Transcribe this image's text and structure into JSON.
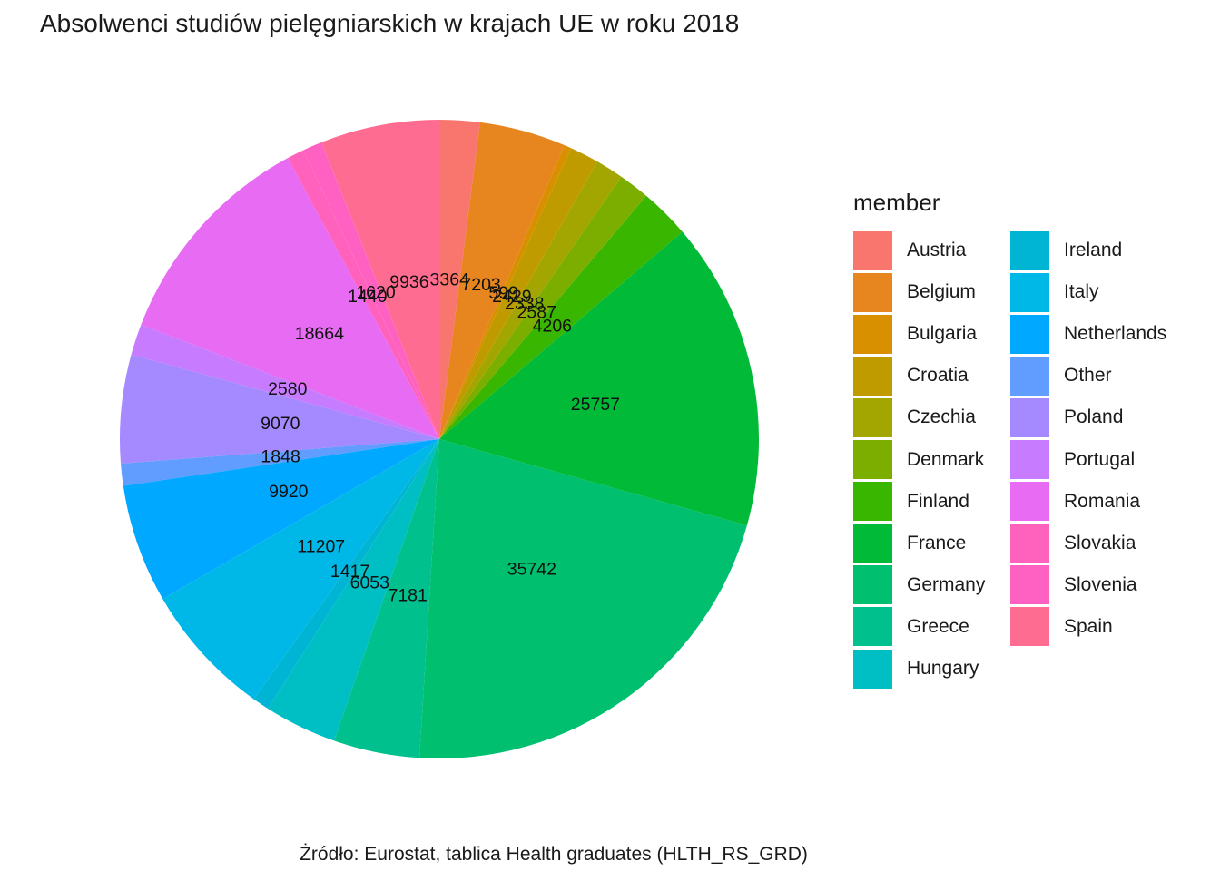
{
  "chart_data": {
    "type": "pie",
    "title": "Absolwenci studiów pielęgniarskich w krajach UE w roku 2018",
    "caption": "Żródło: Eurostat, tablica Health graduates (HLTH_RS_GRD)",
    "legend_title": "member",
    "legend_position": "right",
    "slices": [
      {
        "name": "Austria",
        "value": 3364,
        "color": "#F8766D"
      },
      {
        "name": "Belgium",
        "value": 7203,
        "color": "#E7851E"
      },
      {
        "name": "Bulgaria",
        "value": 599,
        "color": "#D89000"
      },
      {
        "name": "Croatia",
        "value": 2429,
        "color": "#C09B00"
      },
      {
        "name": "Czechia",
        "value": 2338,
        "color": "#A3A500"
      },
      {
        "name": "Denmark",
        "value": 2587,
        "color": "#7CAE00"
      },
      {
        "name": "Finland",
        "value": 4206,
        "color": "#39B600"
      },
      {
        "name": "France",
        "value": 25757,
        "color": "#00BA38"
      },
      {
        "name": "Germany",
        "value": 35742,
        "color": "#00BF6F"
      },
      {
        "name": "Greece",
        "value": 7181,
        "color": "#00C08D"
      },
      {
        "name": "Hungary",
        "value": 6053,
        "color": "#00BFC4"
      },
      {
        "name": "Ireland",
        "value": 1417,
        "color": "#00B5D3"
      },
      {
        "name": "Italy",
        "value": 11207,
        "color": "#00B8E7"
      },
      {
        "name": "Netherlands",
        "value": 9920,
        "color": "#00A9FF"
      },
      {
        "name": "Other",
        "value": 1848,
        "color": "#619CFF"
      },
      {
        "name": "Poland",
        "value": 9070,
        "color": "#A58AFF"
      },
      {
        "name": "Portugal",
        "value": 2580,
        "color": "#C77CFF"
      },
      {
        "name": "Romania",
        "value": 18664,
        "color": "#E76BF3"
      },
      {
        "name": "Slovakia",
        "value": 1440,
        "color": "#FF62BC"
      },
      {
        "name": "Slovenia",
        "value": 1620,
        "color": "#FF61C3"
      },
      {
        "name": "Spain",
        "value": 9936,
        "color": "#FF6C91"
      }
    ]
  }
}
